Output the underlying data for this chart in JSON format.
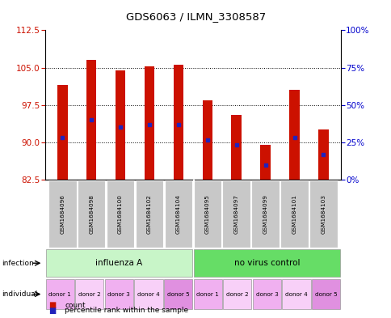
{
  "title": "GDS6063 / ILMN_3308587",
  "samples": [
    "GSM1684096",
    "GSM1684098",
    "GSM1684100",
    "GSM1684102",
    "GSM1684104",
    "GSM1684095",
    "GSM1684097",
    "GSM1684099",
    "GSM1684101",
    "GSM1684103"
  ],
  "count_values": [
    101.5,
    106.5,
    104.5,
    105.2,
    105.5,
    98.5,
    95.5,
    89.5,
    100.5,
    92.5
  ],
  "percentile_values": [
    91.0,
    94.5,
    93.0,
    93.5,
    93.5,
    90.5,
    89.5,
    85.5,
    91.0,
    87.5
  ],
  "y_min": 82.5,
  "y_max": 112.5,
  "y_ticks_left": [
    82.5,
    90.0,
    97.5,
    105.0,
    112.5
  ],
  "y_ticks_right_labels": [
    "0%",
    "25%",
    "50%",
    "75%",
    "100%"
  ],
  "infection_groups": [
    {
      "label": "influenza A",
      "start": 0,
      "end": 5,
      "color": "#c8f5c8"
    },
    {
      "label": "no virus control",
      "start": 5,
      "end": 10,
      "color": "#66dd66"
    }
  ],
  "donor_labels": [
    "donor 1",
    "donor 2",
    "donor 3",
    "donor 4",
    "donor 5",
    "donor 1",
    "donor 2",
    "donor 3",
    "donor 4",
    "donor 5"
  ],
  "donor_colors": [
    "#f0b0f0",
    "#f8d0f8",
    "#f0b0f0",
    "#f8d0f8",
    "#e090e0",
    "#f0b0f0",
    "#f8d0f8",
    "#f0b0f0",
    "#f8d0f8",
    "#e090e0"
  ],
  "bar_color": "#cc1100",
  "dot_color": "#2222bb",
  "bar_width": 0.35,
  "bar_bottom": 82.5,
  "tick_label_color": "#cc1100",
  "right_tick_color": "#0000cc",
  "sample_box_color": "#c8c8c8"
}
